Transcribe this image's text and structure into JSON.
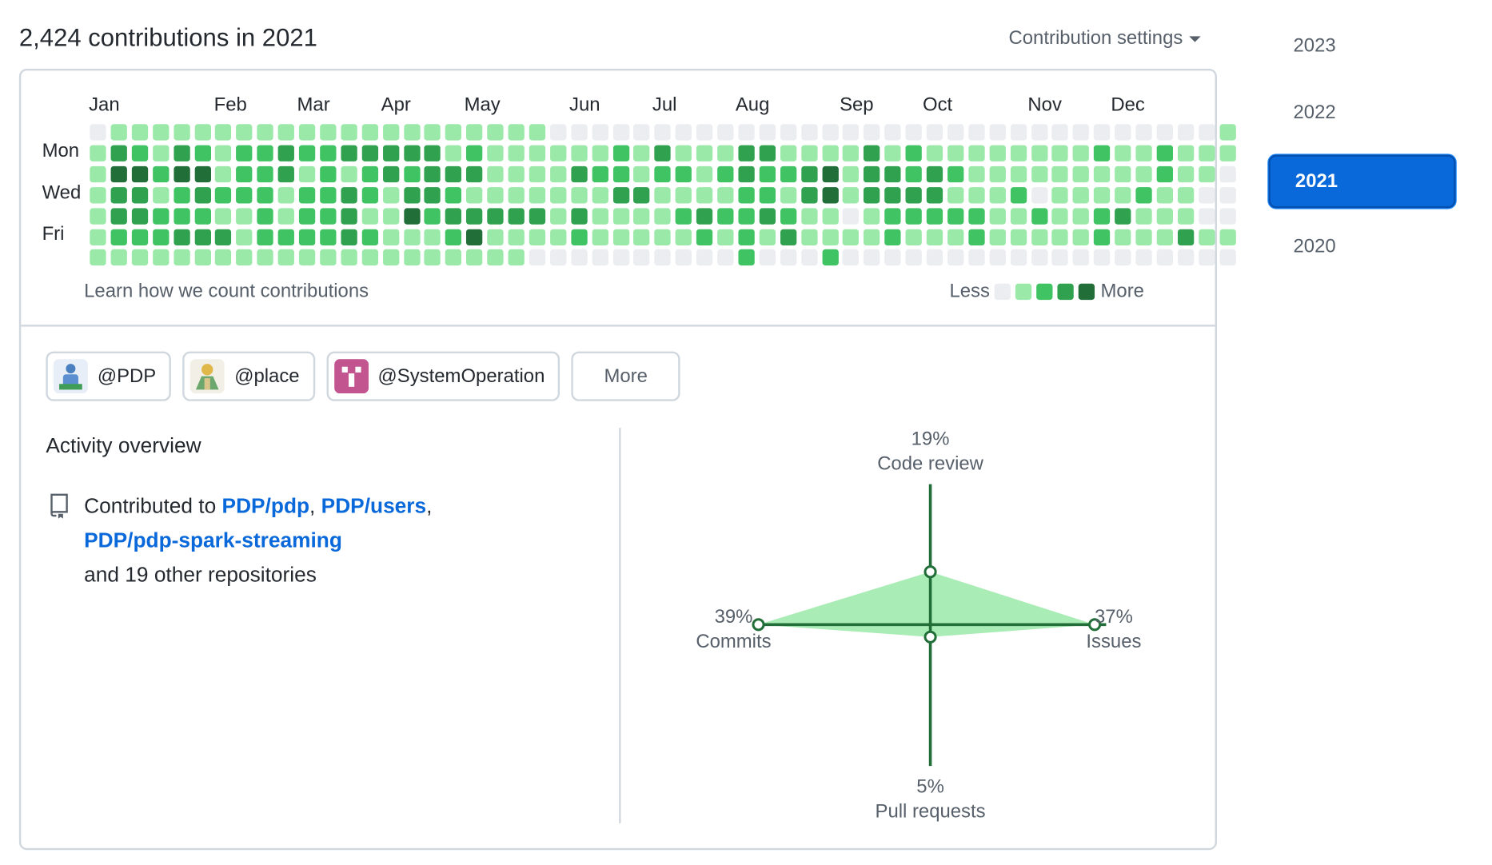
{
  "header": {
    "contributions_title": "2,424 contributions in 2021",
    "settings_label": "Contribution settings"
  },
  "years": [
    "2023",
    "2022",
    "2021",
    "2020"
  ],
  "active_year": "2021",
  "calendar": {
    "months": [
      "Jan",
      "Feb",
      "Mar",
      "Apr",
      "May",
      "Jun",
      "Jul",
      "Aug",
      "Sep",
      "Oct",
      "Nov",
      "Dec"
    ],
    "day_labels": [
      "Mon",
      "Wed",
      "Fri"
    ],
    "levels": [
      "0111111111111111111111000000000000000000000000000000001",
      "1321321223223333312111111213111331111312111111112112111",
      "1442441223121232333111132212212322341332321111111112110",
      "1331232221223213321111111331111221341333311120111121100",
      "1332221121223114233333131111232232110122222112112311100",
      "1222333122223211124111121111121213111121112111112111311",
      "1111111111111111111110000000000200020000000000000000000"
    ],
    "learn_link": "Learn how we count contributions",
    "legend_less": "Less",
    "legend_more": "More",
    "level_colors": [
      "#ebedf0",
      "#9be9a8",
      "#40c463",
      "#30a14e",
      "#216e39"
    ]
  },
  "orgs": [
    {
      "label": "@PDP",
      "icon": "pdp-org-avatar"
    },
    {
      "label": "@place",
      "icon": "place-org-avatar"
    },
    {
      "label": "@SystemOperation",
      "icon": "systemoperation-org-avatar"
    }
  ],
  "orgs_more": "More",
  "activity": {
    "title": "Activity overview",
    "contributed_prefix": "Contributed to",
    "repos": [
      "PDP/pdp",
      "PDP/users",
      "PDP/pdp-spark-streaming"
    ],
    "others": "and 19 other repositories",
    "icon": "repo-icon"
  },
  "radar": {
    "code_review": {
      "pct": "19%",
      "label": "Code review"
    },
    "issues": {
      "pct": "37%",
      "label": "Issues"
    },
    "pull_requests": {
      "pct": "5%",
      "label": "Pull requests"
    },
    "commits": {
      "pct": "39%",
      "label": "Commits"
    },
    "fill_color": "#9be9a8",
    "line_color": "#216e39"
  }
}
